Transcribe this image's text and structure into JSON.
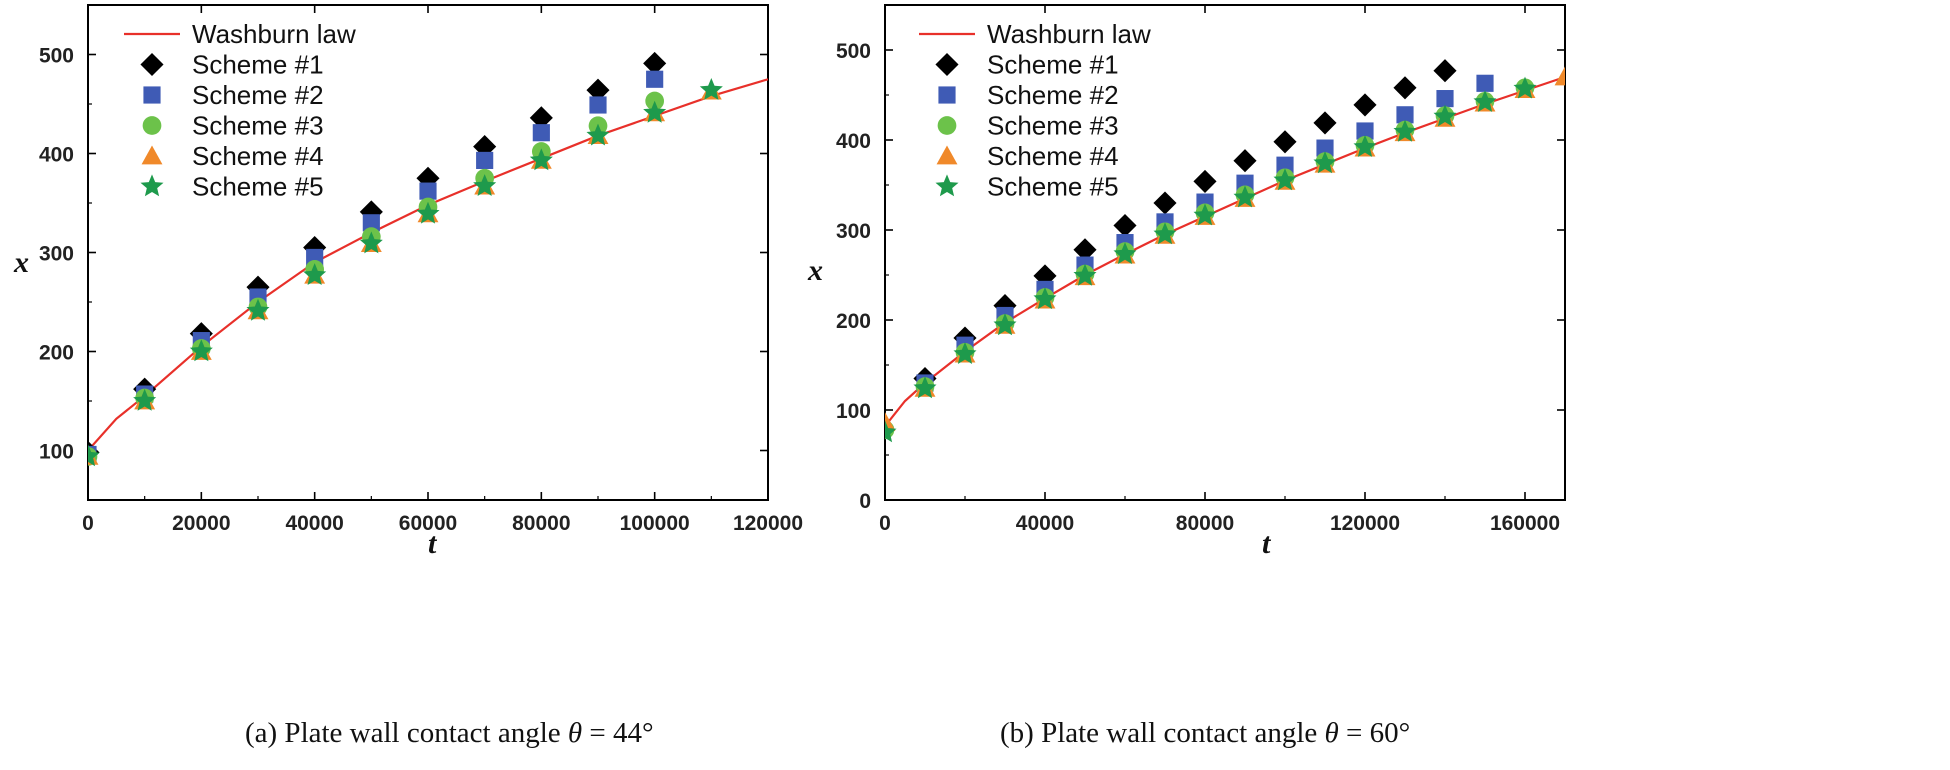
{
  "colors": {
    "washburn": "#e8302a",
    "scheme1": "#000000",
    "scheme2": "#3f5bb5",
    "scheme3": "#6cc24a",
    "scheme4": "#f0892a",
    "scheme5": "#1e9a4c",
    "axis": "#000000"
  },
  "chart_data": [
    {
      "id": "a",
      "type": "scatter",
      "title": "",
      "xlabel": "t",
      "ylabel": "x",
      "xlim": [
        0,
        120000
      ],
      "ylim": [
        50,
        550
      ],
      "x_ticks": [
        0,
        20000,
        40000,
        60000,
        80000,
        100000,
        120000
      ],
      "y_ticks": [
        100,
        200,
        300,
        400,
        500
      ],
      "grid": false,
      "legend_position": "top-left",
      "caption": {
        "label": "(a) Plate wall contact angle",
        "theta_symbol": "θ",
        "theta_value": " = 44°"
      },
      "washburn_curve": {
        "name": "Washburn law",
        "x": [
          0,
          5000,
          10000,
          20000,
          30000,
          40000,
          50000,
          60000,
          70000,
          80000,
          90000,
          100000,
          110000,
          120000
        ],
        "y": [
          100,
          132,
          155,
          205,
          250,
          290,
          320,
          348,
          372,
          395,
          418,
          438,
          458,
          475
        ]
      },
      "series": [
        {
          "name": "Scheme #1",
          "marker": "diamond",
          "x": [
            0,
            10000,
            20000,
            30000,
            40000,
            50000,
            60000,
            70000,
            80000,
            90000,
            100000
          ],
          "y": [
            98,
            162,
            218,
            265,
            305,
            341,
            375,
            407,
            436,
            464,
            491
          ]
        },
        {
          "name": "Scheme #2",
          "marker": "square",
          "x": [
            0,
            10000,
            20000,
            30000,
            40000,
            50000,
            60000,
            70000,
            80000,
            90000,
            100000
          ],
          "y": [
            96,
            157,
            211,
            255,
            295,
            330,
            362,
            393,
            421,
            449,
            475
          ]
        },
        {
          "name": "Scheme #3",
          "marker": "circle",
          "x": [
            0,
            10000,
            20000,
            30000,
            40000,
            50000,
            60000,
            70000,
            80000,
            90000,
            100000
          ],
          "y": [
            94,
            153,
            203,
            245,
            283,
            316,
            346,
            375,
            402,
            428,
            453
          ]
        },
        {
          "name": "Scheme #4",
          "marker": "triangle",
          "x": [
            0,
            10000,
            20000,
            30000,
            40000,
            50000,
            60000,
            70000,
            80000,
            90000,
            100000,
            110000
          ],
          "y": [
            94,
            150,
            200,
            241,
            277,
            309,
            339,
            367,
            393,
            418,
            441,
            463
          ]
        },
        {
          "name": "Scheme #5",
          "marker": "star",
          "x": [
            0,
            10000,
            20000,
            30000,
            40000,
            50000,
            60000,
            70000,
            80000,
            90000,
            100000,
            110000
          ],
          "y": [
            94,
            150,
            200,
            241,
            277,
            309,
            339,
            367,
            393,
            418,
            441,
            464
          ]
        }
      ]
    },
    {
      "id": "b",
      "type": "scatter",
      "title": "",
      "xlabel": "t",
      "ylabel": "x",
      "xlim": [
        0,
        170000
      ],
      "ylim": [
        0,
        550
      ],
      "x_ticks": [
        0,
        40000,
        80000,
        120000,
        160000
      ],
      "y_ticks": [
        0,
        100,
        200,
        300,
        400,
        500
      ],
      "grid": false,
      "legend_position": "top-left",
      "caption": {
        "label": "(b) Plate wall contact angle",
        "theta_symbol": "θ",
        "theta_value": " = 60°"
      },
      "washburn_curve": {
        "name": "Washburn law",
        "x": [
          0,
          5000,
          10000,
          20000,
          30000,
          40000,
          50000,
          60000,
          70000,
          80000,
          90000,
          100000,
          110000,
          120000,
          130000,
          140000,
          150000,
          160000,
          170000
        ],
        "y": [
          82,
          110,
          130,
          165,
          197,
          224,
          250,
          273,
          295,
          315,
          335,
          355,
          373,
          391,
          408,
          424,
          440,
          455,
          470
        ]
      },
      "series": [
        {
          "name": "Scheme #1",
          "marker": "diamond",
          "x": [
            10000,
            20000,
            30000,
            40000,
            50000,
            60000,
            70000,
            80000,
            90000,
            100000,
            110000,
            120000,
            130000,
            140000
          ],
          "y": [
            135,
            180,
            216,
            249,
            278,
            305,
            330,
            354,
            377,
            398,
            419,
            439,
            458,
            477
          ]
        },
        {
          "name": "Scheme #2",
          "marker": "square",
          "x": [
            10000,
            20000,
            30000,
            40000,
            50000,
            60000,
            70000,
            80000,
            90000,
            100000,
            110000,
            120000,
            130000,
            140000,
            150000
          ],
          "y": [
            130,
            172,
            205,
            234,
            261,
            286,
            309,
            331,
            352,
            372,
            391,
            410,
            428,
            446,
            463
          ]
        },
        {
          "name": "Scheme #3",
          "marker": "circle",
          "x": [
            0,
            10000,
            20000,
            30000,
            40000,
            50000,
            60000,
            70000,
            80000,
            90000,
            100000,
            110000,
            120000,
            130000,
            140000,
            150000,
            160000
          ],
          "y": [
            78,
            126,
            164,
            196,
            225,
            251,
            276,
            298,
            319,
            339,
            358,
            376,
            394,
            411,
            427,
            443,
            458
          ]
        },
        {
          "name": "Scheme #4",
          "marker": "triangle",
          "x": [
            0,
            10000,
            20000,
            30000,
            40000,
            50000,
            60000,
            70000,
            80000,
            90000,
            100000,
            110000,
            120000,
            130000,
            140000,
            150000,
            160000,
            170000
          ],
          "y": [
            86,
            124,
            162,
            194,
            222,
            248,
            272,
            294,
            315,
            335,
            354,
            373,
            391,
            408,
            424,
            441,
            456,
            470
          ]
        },
        {
          "name": "Scheme #5",
          "marker": "star",
          "x": [
            0,
            10000,
            20000,
            30000,
            40000,
            50000,
            60000,
            70000,
            80000,
            90000,
            100000,
            110000,
            120000,
            130000,
            140000,
            150000,
            160000
          ],
          "y": [
            75,
            124,
            162,
            194,
            223,
            249,
            273,
            295,
            316,
            336,
            355,
            374,
            392,
            409,
            426,
            442,
            457
          ]
        }
      ]
    }
  ]
}
